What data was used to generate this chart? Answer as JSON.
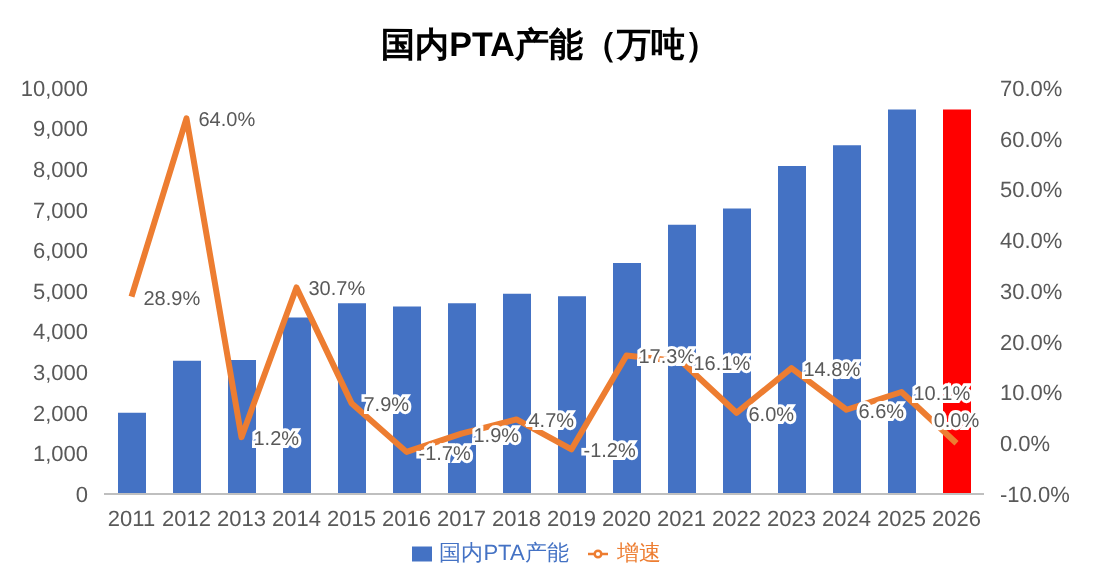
{
  "chart_data": {
    "type": "bar",
    "title": "国内PTA产能（万吨）",
    "categories": [
      "2011",
      "2012",
      "2013",
      "2014",
      "2015",
      "2016",
      "2017",
      "2018",
      "2019",
      "2020",
      "2021",
      "2022",
      "2023",
      "2024",
      "2025",
      "2026"
    ],
    "series": [
      {
        "name": "国内PTA产能",
        "color": "#4472c4",
        "colors": [
          "#4472c4",
          "#4472c4",
          "#4472c4",
          "#4472c4",
          "#4472c4",
          "#4472c4",
          "#4472c4",
          "#4472c4",
          "#4472c4",
          "#4472c4",
          "#4472c4",
          "#4472c4",
          "#4472c4",
          "#4472c4",
          "#4472c4",
          "#ff0000"
        ],
        "values": [
          2000,
          3280,
          3300,
          4350,
          4700,
          4620,
          4700,
          4930,
          4870,
          5690,
          6630,
          7030,
          8080,
          8590,
          9470,
          9470
        ]
      },
      {
        "name": "增速",
        "type": "line",
        "axis": "y2",
        "color": "#ed7d31",
        "values": [
          28.9,
          64.0,
          1.2,
          30.7,
          7.9,
          -1.7,
          1.9,
          4.7,
          -1.2,
          17.3,
          16.1,
          6.0,
          14.8,
          6.6,
          10.1,
          0.0
        ],
        "value_labels": [
          "28.9%",
          "64.0%",
          "1.2%",
          "30.7%",
          "7.9%",
          "-1.7%",
          "1.9%",
          "4.7%",
          "-1.2%",
          "17.3%",
          "16.1%",
          "6.0%",
          "14.8%",
          "6.6%",
          "10.1%",
          "0.0%"
        ]
      }
    ],
    "ylim": [
      0,
      10000
    ],
    "yticks": [
      0,
      {
        "value": 1000,
        "label": "1,000"
      },
      {
        "value": 2000,
        "label": "2,000"
      },
      {
        "value": 3000,
        "label": "3,000"
      },
      {
        "value": 4000,
        "label": "4,000"
      },
      {
        "value": 5000,
        "label": "5,000"
      },
      {
        "value": 6000,
        "label": "6,000"
      },
      {
        "value": 7000,
        "label": "7,000"
      },
      {
        "value": 8000,
        "label": "8,000"
      },
      {
        "value": 9000,
        "label": "9,000"
      },
      {
        "value": 10000,
        "label": "10,000"
      }
    ],
    "y2lim": [
      -10,
      70
    ],
    "y2ticks": [
      {
        "value": -10,
        "label": "-10.0%"
      },
      {
        "value": 0,
        "label": "0.0%"
      },
      {
        "value": 10,
        "label": "10.0%"
      },
      {
        "value": 20,
        "label": "20.0%"
      },
      {
        "value": 30,
        "label": "30.0%"
      },
      {
        "value": 40,
        "label": "40.0%"
      },
      {
        "value": 50,
        "label": "50.0%"
      },
      {
        "value": 60,
        "label": "60.0%"
      },
      {
        "value": 70,
        "label": "70.0%"
      }
    ],
    "grid": false,
    "legend": "bottom",
    "marker": "none",
    "line_style": "solid"
  }
}
